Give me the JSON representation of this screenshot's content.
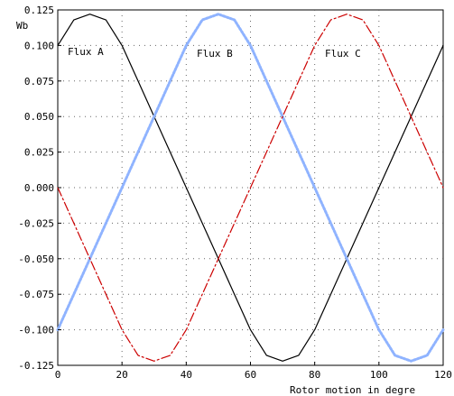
{
  "chart_data": {
    "type": "line",
    "ylabel": "Wb",
    "xlabel": "Rotor motion in degre",
    "xlim": [
      0,
      120
    ],
    "ylim": [
      -0.125,
      0.125
    ],
    "x_ticks": [
      0,
      20,
      40,
      60,
      80,
      100,
      120
    ],
    "y_ticks": [
      0.125,
      0.1,
      0.075,
      0.05,
      0.025,
      0.0,
      -0.025,
      -0.05,
      -0.075,
      -0.1,
      -0.125
    ],
    "y_tick_labels": [
      "0.125",
      "0.100",
      "0.075",
      "0.050",
      "0.025",
      "0.000",
      "-0.025",
      "-0.050",
      "-0.075",
      "-0.100",
      "-0.125"
    ],
    "grid": true,
    "x": [
      0,
      5,
      10,
      15,
      20,
      25,
      30,
      35,
      40,
      45,
      50,
      55,
      60,
      65,
      70,
      75,
      80,
      85,
      90,
      95,
      100,
      105,
      110,
      115,
      120
    ],
    "series": [
      {
        "name": "Flux A",
        "color": "#000000",
        "style": "solid",
        "values": [
          0.1,
          0.118,
          0.122,
          0.118,
          0.1,
          0.075,
          0.05,
          0.025,
          0.0,
          -0.025,
          -0.05,
          -0.075,
          -0.1,
          -0.118,
          -0.122,
          -0.118,
          -0.1,
          -0.075,
          -0.05,
          -0.025,
          0.0,
          0.025,
          0.05,
          0.075,
          0.1
        ]
      },
      {
        "name": "Flux B",
        "color": "#8fb3ff",
        "style": "dotted",
        "values": [
          -0.1,
          -0.075,
          -0.05,
          -0.025,
          0.0,
          0.025,
          0.05,
          0.075,
          0.1,
          0.118,
          0.122,
          0.118,
          0.1,
          0.075,
          0.05,
          0.025,
          0.0,
          -0.025,
          -0.05,
          -0.075,
          -0.1,
          -0.118,
          -0.122,
          -0.118,
          -0.1
        ]
      },
      {
        "name": "Flux C",
        "color": "#cc0000",
        "style": "dashdot",
        "values": [
          0.0,
          -0.025,
          -0.05,
          -0.075,
          -0.1,
          -0.118,
          -0.122,
          -0.118,
          -0.1,
          -0.075,
          -0.05,
          -0.025,
          0.0,
          0.025,
          0.05,
          0.075,
          0.1,
          0.118,
          0.122,
          0.118,
          0.1,
          0.075,
          0.05,
          0.025,
          0.0
        ]
      }
    ]
  }
}
